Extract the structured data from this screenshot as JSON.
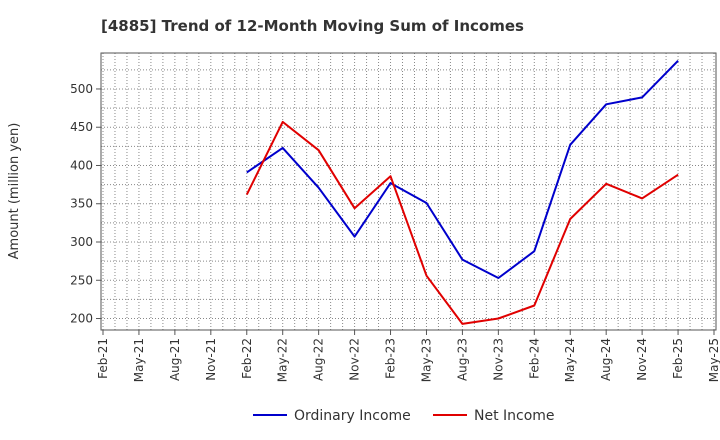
{
  "chart_data": {
    "type": "line",
    "title": "[4885]  Trend of 12-Month Moving Sum of Incomes",
    "xlabel": "",
    "ylabel": "Amount (million yen)",
    "categories": [
      "Feb-21",
      "May-21",
      "Aug-21",
      "Nov-21",
      "Feb-22",
      "May-22",
      "Aug-22",
      "Nov-22",
      "Feb-23",
      "May-23",
      "Aug-23",
      "Nov-23",
      "Feb-24",
      "May-24",
      "Aug-24",
      "Nov-24",
      "Feb-25",
      "May-25"
    ],
    "yticks": [
      200,
      250,
      300,
      350,
      400,
      450,
      500
    ],
    "ylim": [
      185,
      547
    ],
    "grid": true,
    "legend_position": "bottom-center",
    "series": [
      {
        "name": "Ordinary Income",
        "color": "#0000cc",
        "values": [
          null,
          null,
          null,
          null,
          391,
          423,
          371,
          307,
          377,
          351,
          277,
          253,
          288,
          427,
          480,
          489,
          537,
          null
        ]
      },
      {
        "name": "Net Income",
        "color": "#e00000",
        "values": [
          null,
          null,
          null,
          null,
          362,
          457,
          420,
          344,
          386,
          256,
          193,
          200,
          217,
          330,
          376,
          357,
          388,
          null
        ]
      }
    ]
  }
}
